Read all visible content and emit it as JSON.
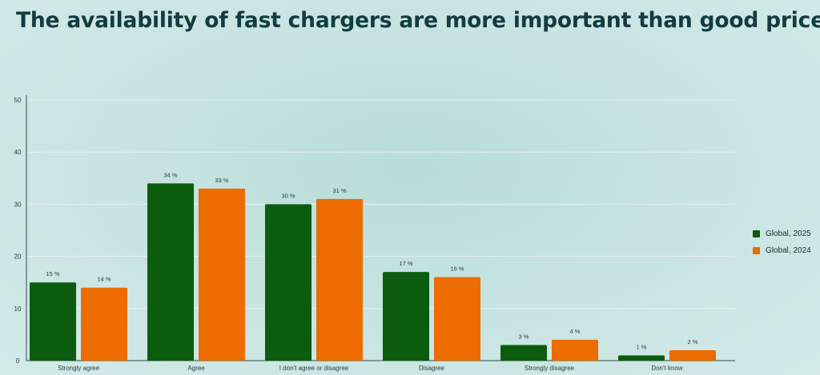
{
  "chart_data": {
    "type": "bar",
    "title": "The availability of fast chargers are more important than good price",
    "categories": [
      "Strongly agree",
      "Agree",
      "I don't agree or disagree",
      "Disagree",
      "Strongly disagree",
      "Don't know"
    ],
    "series": [
      {
        "name": "Global, 2025",
        "color": "#0b5c0f",
        "values": [
          15,
          34,
          30,
          17,
          3,
          1
        ]
      },
      {
        "name": "Global, 2024",
        "color": "#ec6c00",
        "values": [
          14,
          33,
          31,
          16,
          4,
          2
        ]
      }
    ],
    "value_suffix": " %",
    "ylim": [
      0,
      50
    ],
    "yticks": [
      0,
      10,
      20,
      30,
      40,
      50
    ],
    "grid": true,
    "legend": "right"
  }
}
